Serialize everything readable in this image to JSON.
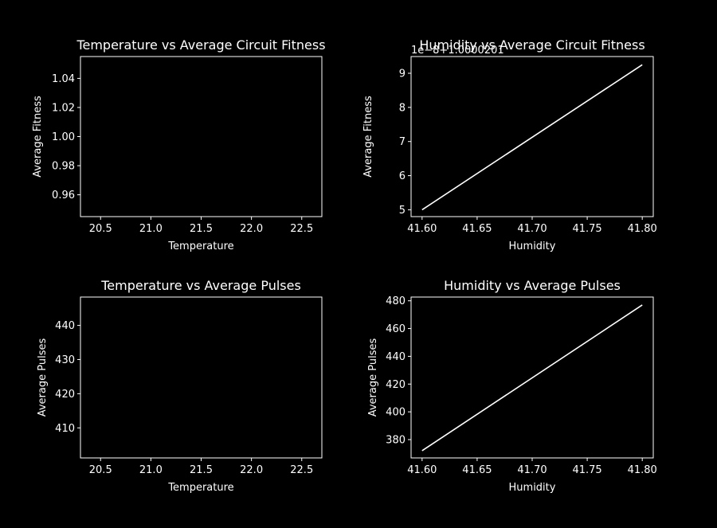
{
  "chart_data": [
    {
      "id": "temp-fitness",
      "type": "line",
      "title": "Temperature vs Average Circuit Fitness",
      "xlabel": "Temperature",
      "ylabel": "Average Fitness",
      "xlim": [
        20.3,
        22.7
      ],
      "ylim": [
        0.945,
        1.055
      ],
      "xticks": [
        20.5,
        21.0,
        21.5,
        22.0,
        22.5
      ],
      "xtick_labels": [
        "20.5",
        "21.0",
        "21.5",
        "22.0",
        "22.5"
      ],
      "yticks": [
        0.96,
        0.98,
        1.0,
        1.02,
        1.04
      ],
      "ytick_labels": [
        "0.96",
        "0.98",
        "1.00",
        "1.02",
        "1.04"
      ],
      "offset_text": "",
      "grid": false,
      "series": [
        {
          "x": [],
          "y": []
        }
      ]
    },
    {
      "id": "humidity-fitness",
      "type": "line",
      "title": "Humidity vs Average Circuit Fitness",
      "xlabel": "Humidity",
      "ylabel": "Average Fitness",
      "xlim": [
        41.59,
        41.81
      ],
      "ylim": [
        4.8,
        9.49
      ],
      "xticks": [
        41.6,
        41.65,
        41.7,
        41.75,
        41.8
      ],
      "xtick_labels": [
        "41.60",
        "41.65",
        "41.70",
        "41.75",
        "41.80"
      ],
      "yticks": [
        5,
        6,
        7,
        8,
        9
      ],
      "ytick_labels": [
        "5",
        "6",
        "7",
        "8",
        "9"
      ],
      "offset_text": "1e−8+1.0000201",
      "grid": false,
      "series": [
        {
          "x": [
            41.6,
            41.8
          ],
          "y": [
            5.0,
            9.25
          ]
        }
      ]
    },
    {
      "id": "temp-pulses",
      "type": "line",
      "title": "Temperature vs Average Pulses",
      "xlabel": "Temperature",
      "ylabel": "Average Pulses",
      "xlim": [
        20.3,
        22.7
      ],
      "ylim": [
        401.2,
        448.3
      ],
      "xticks": [
        20.5,
        21.0,
        21.5,
        22.0,
        22.5
      ],
      "xtick_labels": [
        "20.5",
        "21.0",
        "21.5",
        "22.0",
        "22.5"
      ],
      "yticks": [
        410,
        420,
        430,
        440
      ],
      "ytick_labels": [
        "410",
        "420",
        "430",
        "440"
      ],
      "offset_text": "",
      "grid": false,
      "series": [
        {
          "x": [],
          "y": []
        }
      ]
    },
    {
      "id": "humidity-pulses",
      "type": "line",
      "title": "Humidity vs Average Pulses",
      "xlabel": "Humidity",
      "ylabel": "Average Pulses",
      "xlim": [
        41.59,
        41.81
      ],
      "ylim": [
        366.8,
        482.7
      ],
      "xticks": [
        41.6,
        41.65,
        41.7,
        41.75,
        41.8
      ],
      "xtick_labels": [
        "41.60",
        "41.65",
        "41.70",
        "41.75",
        "41.80"
      ],
      "yticks": [
        380,
        400,
        420,
        440,
        460,
        480
      ],
      "ytick_labels": [
        "380",
        "400",
        "420",
        "440",
        "460",
        "480"
      ],
      "offset_text": "",
      "grid": false,
      "series": [
        {
          "x": [
            41.6,
            41.8
          ],
          "y": [
            372,
            477
          ]
        }
      ]
    }
  ]
}
